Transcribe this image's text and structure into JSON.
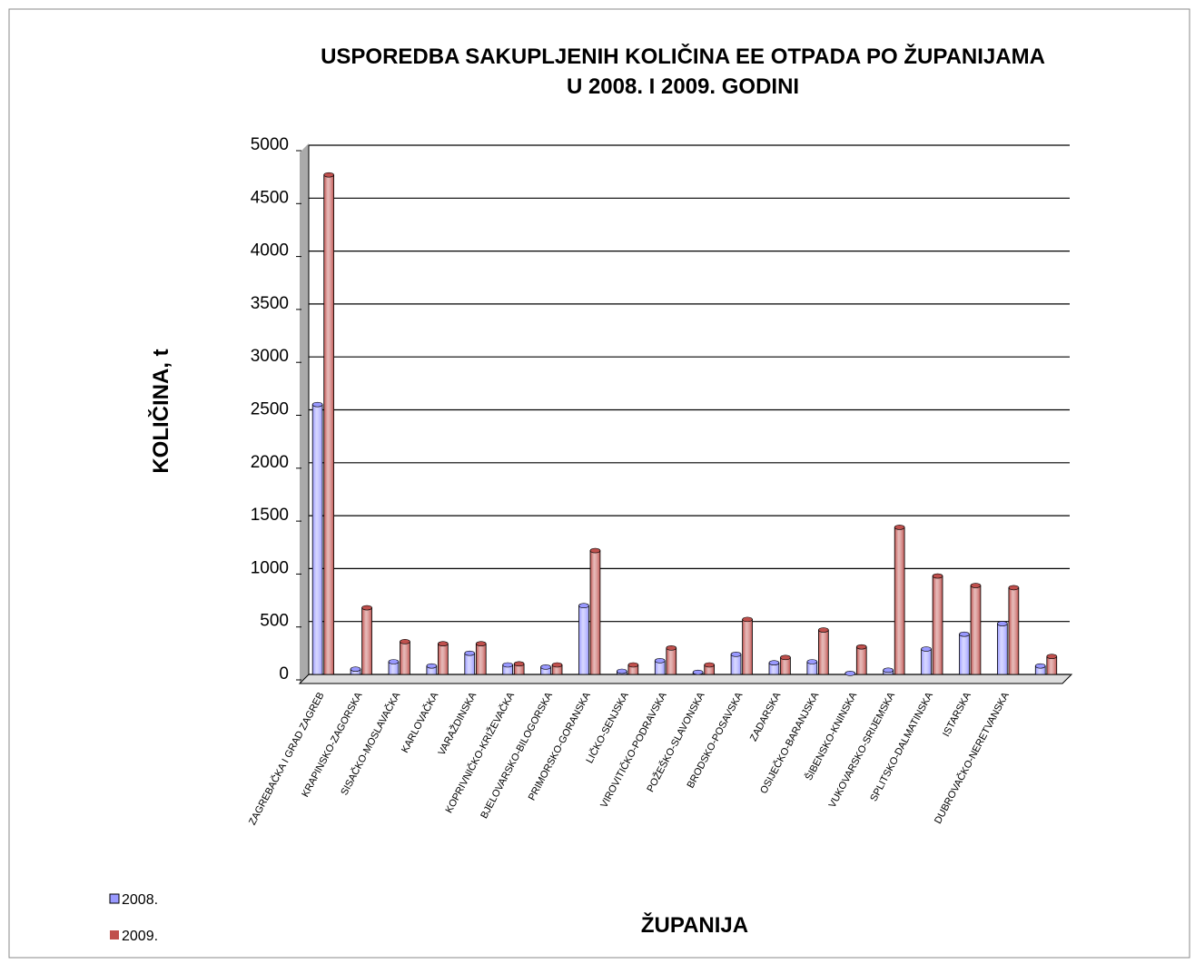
{
  "chart_data": {
    "type": "bar",
    "title": "USPOREDBA SAKUPLJENIH KOLIČINA EE OTPADA PO ŽUPANIJAMA",
    "subtitle": "U 2008. I 2009. GODINI",
    "x_label": "ŽUPANIJA",
    "y_label": "KOLIČINA, t",
    "categories": [
      "ZAGREBAČKA I GRAD ZAGREB",
      "KRAPINSKO-ZAGORSKA",
      "SISAČKO-MOSLAVAČKA",
      "KARLOVAČKA",
      "VARAŽDINSKA",
      "KOPRIVNIČKO-KRIŽEVAČKA",
      "BJELOVARSKO-BILOGORSKA",
      "PRIMORSKO-GORANSKA",
      "LIČKO-SENJSKA",
      "VIROVITIČKO-PODRAVSKA",
      "POŽEŠKO-SLAVONSKA",
      "BRODSKO-POSAVSKA",
      "ZADARSKA",
      "OSIJEČKO-BARANJSKA",
      "ŠIBENSKO-KNINSKA",
      "VUKOVARSKO-SRIJEMSKA",
      "SPLITSKO-DALMATINSKA",
      "ISTARSKA",
      "DUBROVAČKO-NERETVANSKA",
      null
    ],
    "series": [
      {
        "name": "2008.",
        "color": "#9999ff",
        "values": [
          2550,
          50,
          120,
          80,
          200,
          90,
          70,
          650,
          30,
          130,
          20,
          190,
          110,
          120,
          10,
          40,
          240,
          380,
          480,
          80
        ]
      },
      {
        "name": "2009.",
        "color": "#c0504d",
        "values": [
          4720,
          630,
          310,
          290,
          290,
          100,
          90,
          1170,
          90,
          250,
          90,
          520,
          160,
          420,
          260,
          1390,
          930,
          840,
          820,
          170
        ]
      }
    ],
    "ylim": [
      0,
      5000
    ],
    "yticks": [
      0,
      500,
      1000,
      1500,
      2000,
      2500,
      3000,
      3500,
      4000,
      4500,
      5000
    ],
    "grid": true,
    "legend": "bottom-left"
  }
}
